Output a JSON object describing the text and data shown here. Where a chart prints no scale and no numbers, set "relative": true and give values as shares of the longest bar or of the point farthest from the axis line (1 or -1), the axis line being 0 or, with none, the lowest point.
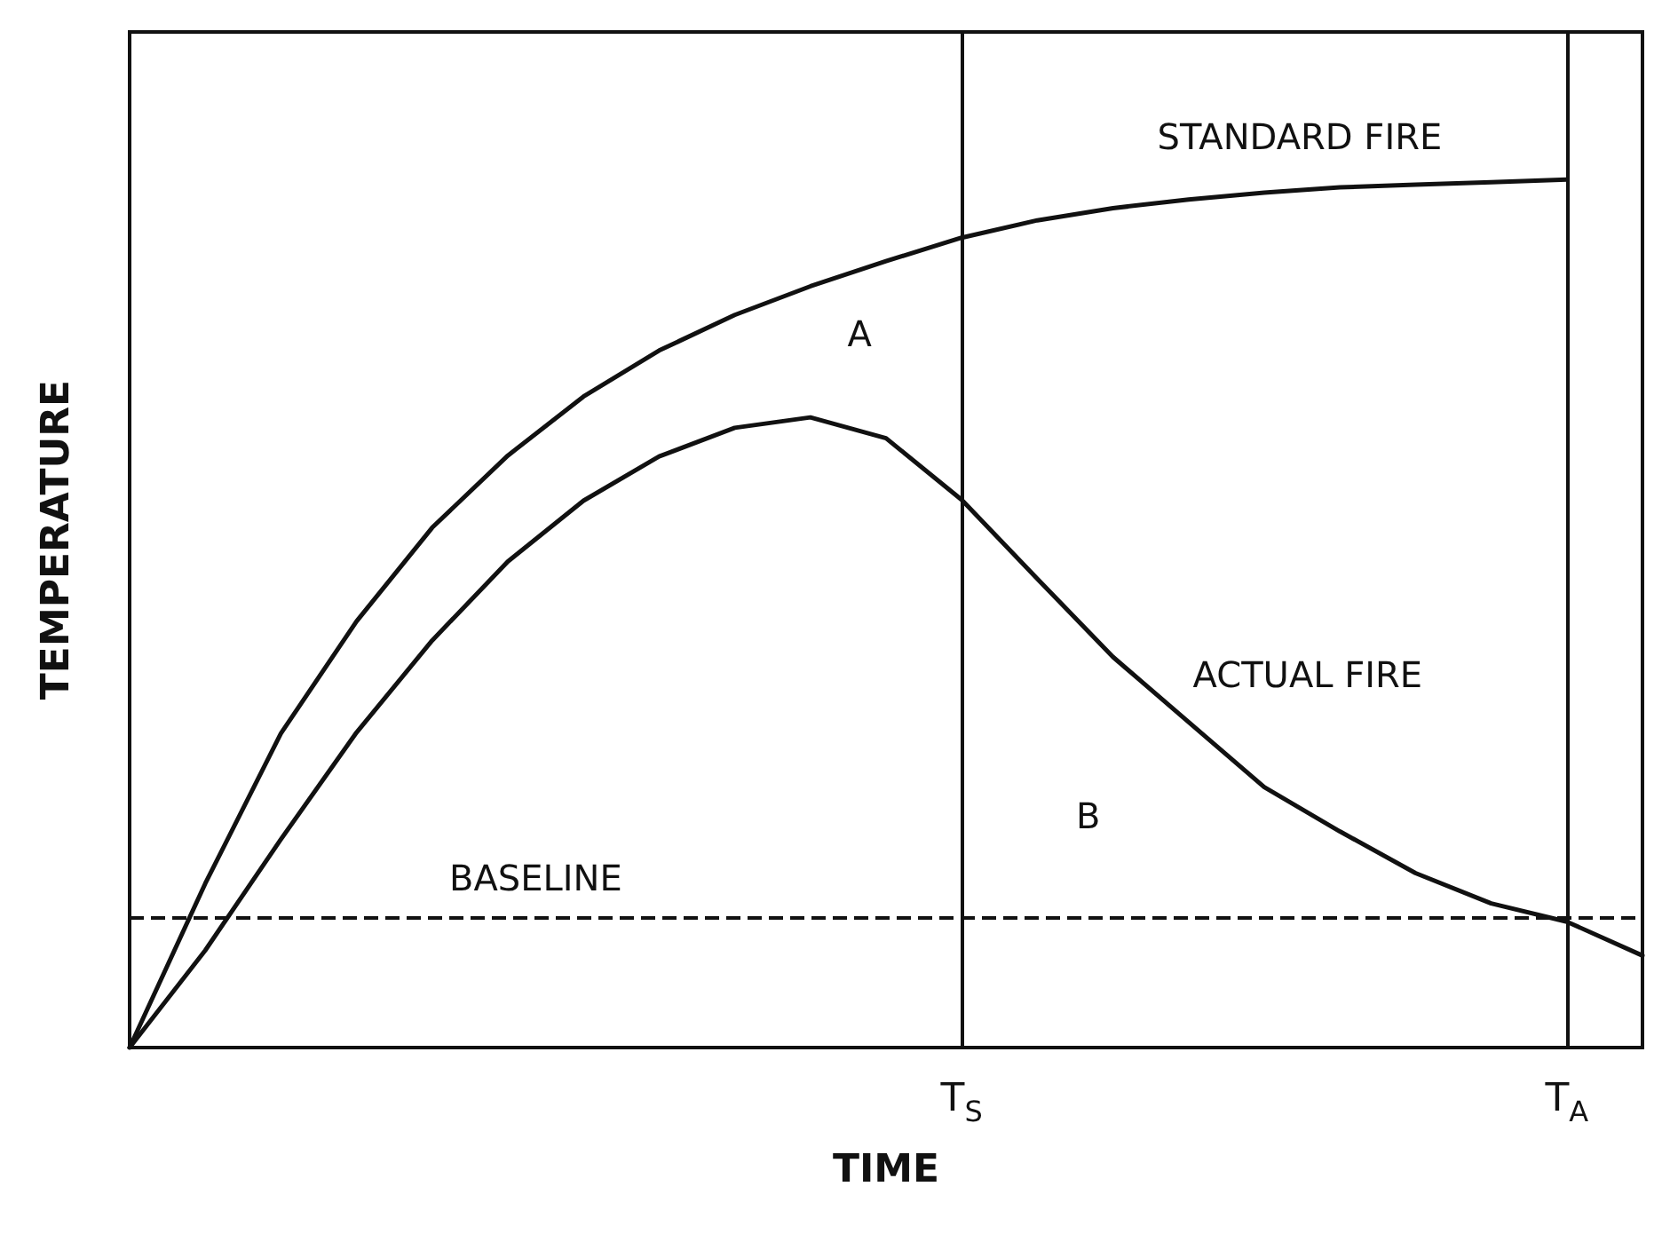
{
  "chart_data": {
    "type": "line",
    "relative": true,
    "xlabel": "TIME",
    "ylabel": "TEMPERATURE",
    "tick_labels": "x",
    "grid": false,
    "legend": false,
    "marker": "none",
    "line_style": "solid",
    "categories": [
      null,
      null,
      null,
      null,
      null,
      null,
      null,
      null,
      null,
      null,
      null,
      "T$_{S}$",
      null,
      null,
      null,
      null,
      null,
      null,
      null,
      "T$_{A}$",
      null
    ],
    "series": [
      {
        "name": "STANDARD FIRE",
        "color": "#111111",
        "values": [
          0,
          0.189,
          0.362,
          0.491,
          0.599,
          0.682,
          0.75,
          0.803,
          0.844,
          0.877,
          0.906,
          0.933,
          0.953,
          0.967,
          0.977,
          0.985,
          0.991,
          0.994,
          0.997,
          1,
          null
        ]
      },
      {
        "name": "ACTUAL FIRE",
        "color": "#111111",
        "values": [
          0,
          0.112,
          0.24,
          0.363,
          0.469,
          0.56,
          0.63,
          0.681,
          0.714,
          0.726,
          0.702,
          0.631,
          0.54,
          0.45,
          0.375,
          0.3,
          0.249,
          0.201,
          0.166,
          0.145,
          0.106
        ]
      }
    ],
    "ref_lines": [
      {
        "axis": "y",
        "value": 0.15,
        "label": "BASELINE",
        "line_style": "dashed",
        "color": "#111111"
      },
      {
        "axis": "x",
        "value": "T$_{S}$",
        "color": "#111111"
      },
      {
        "axis": "x",
        "value": "T$_{A}$",
        "color": "#111111"
      }
    ],
    "annotations": [
      "A",
      "B"
    ]
  }
}
